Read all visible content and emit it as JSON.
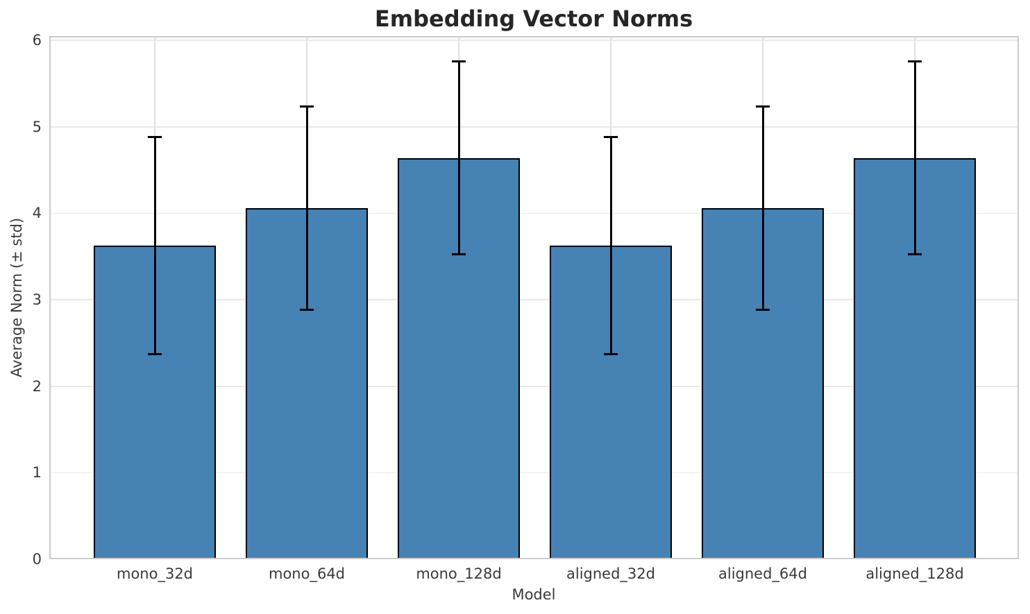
{
  "chart_data": {
    "type": "bar",
    "title": "Embedding Vector Norms",
    "xlabel": "Model",
    "ylabel": "Average Norm (± std)",
    "categories": [
      "mono_32d",
      "mono_64d",
      "mono_128d",
      "aligned_32d",
      "aligned_64d",
      "aligned_128d"
    ],
    "values": [
      3.63,
      4.06,
      4.64,
      3.63,
      4.06,
      4.64
    ],
    "errors": [
      1.26,
      1.18,
      1.12,
      1.26,
      1.18,
      1.12
    ],
    "error_ranges": [
      [
        2.38,
        4.89
      ],
      [
        2.88,
        5.24
      ],
      [
        3.52,
        5.76
      ],
      [
        2.38,
        4.89
      ],
      [
        2.88,
        5.24
      ],
      [
        3.52,
        5.76
      ]
    ],
    "ylim": [
      0,
      6
    ],
    "yticks": [
      0,
      1,
      2,
      3,
      4,
      5,
      6
    ],
    "grid": true,
    "legend": "none",
    "colors": {
      "bar_fill": "#4682B4",
      "bar_edge": "#000000",
      "error_bar": "#000000",
      "gridline_h": "#e9e9e9",
      "gridline_v": "#dedede",
      "spine": "#cbcbcb",
      "title_text": "#262626",
      "tick_text": "#3a3a3a"
    }
  }
}
